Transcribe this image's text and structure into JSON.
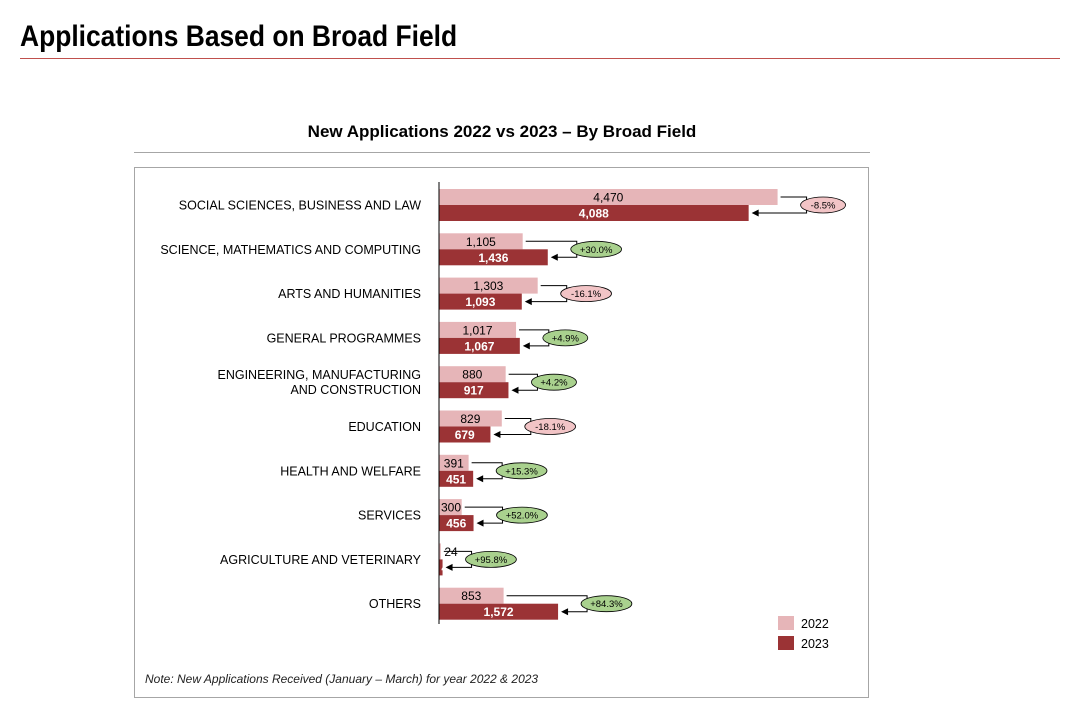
{
  "page": {
    "title": "Applications Based on Broad Field"
  },
  "chart_data": {
    "type": "bar",
    "orientation": "horizontal",
    "title": "New Applications 2022 vs 2023 – By Broad Field",
    "categories": [
      [
        "SOCIAL SCIENCES, BUSINESS AND LAW"
      ],
      [
        "SCIENCE, MATHEMATICS AND COMPUTING"
      ],
      [
        "ARTS AND HUMANITIES"
      ],
      [
        "GENERAL PROGRAMMES"
      ],
      [
        "ENGINEERING, MANUFACTURING",
        "AND CONSTRUCTION"
      ],
      [
        "EDUCATION"
      ],
      [
        "HEALTH AND WELFARE"
      ],
      [
        "SERVICES"
      ],
      [
        "AGRICULTURE AND VETERINARY"
      ],
      [
        "OTHERS"
      ]
    ],
    "series": [
      {
        "name": "2022",
        "color": "#e6b5b8",
        "values": [
          4470,
          1105,
          1303,
          1017,
          880,
          829,
          391,
          300,
          24,
          853
        ]
      },
      {
        "name": "2023",
        "color": "#9b3335",
        "values": [
          4088,
          1436,
          1093,
          1067,
          917,
          679,
          451,
          456,
          47,
          1572
        ]
      }
    ],
    "changes": [
      "-8.5%",
      "+30.0%",
      "-16.1%",
      "+4.9%",
      "+4.2%",
      "-18.1%",
      "+15.3%",
      "+52.0%",
      "+95.8%",
      "+84.3%"
    ],
    "change_colors": {
      "positive": "#a9d18e",
      "negative": "#f2c4c6"
    },
    "legend": {
      "position": "bottom-right",
      "entries": [
        "2022",
        "2023"
      ]
    },
    "xlim": [
      0,
      4700
    ]
  },
  "note": "Note: New Applications Received (January – March) for year 2022 & 2023"
}
